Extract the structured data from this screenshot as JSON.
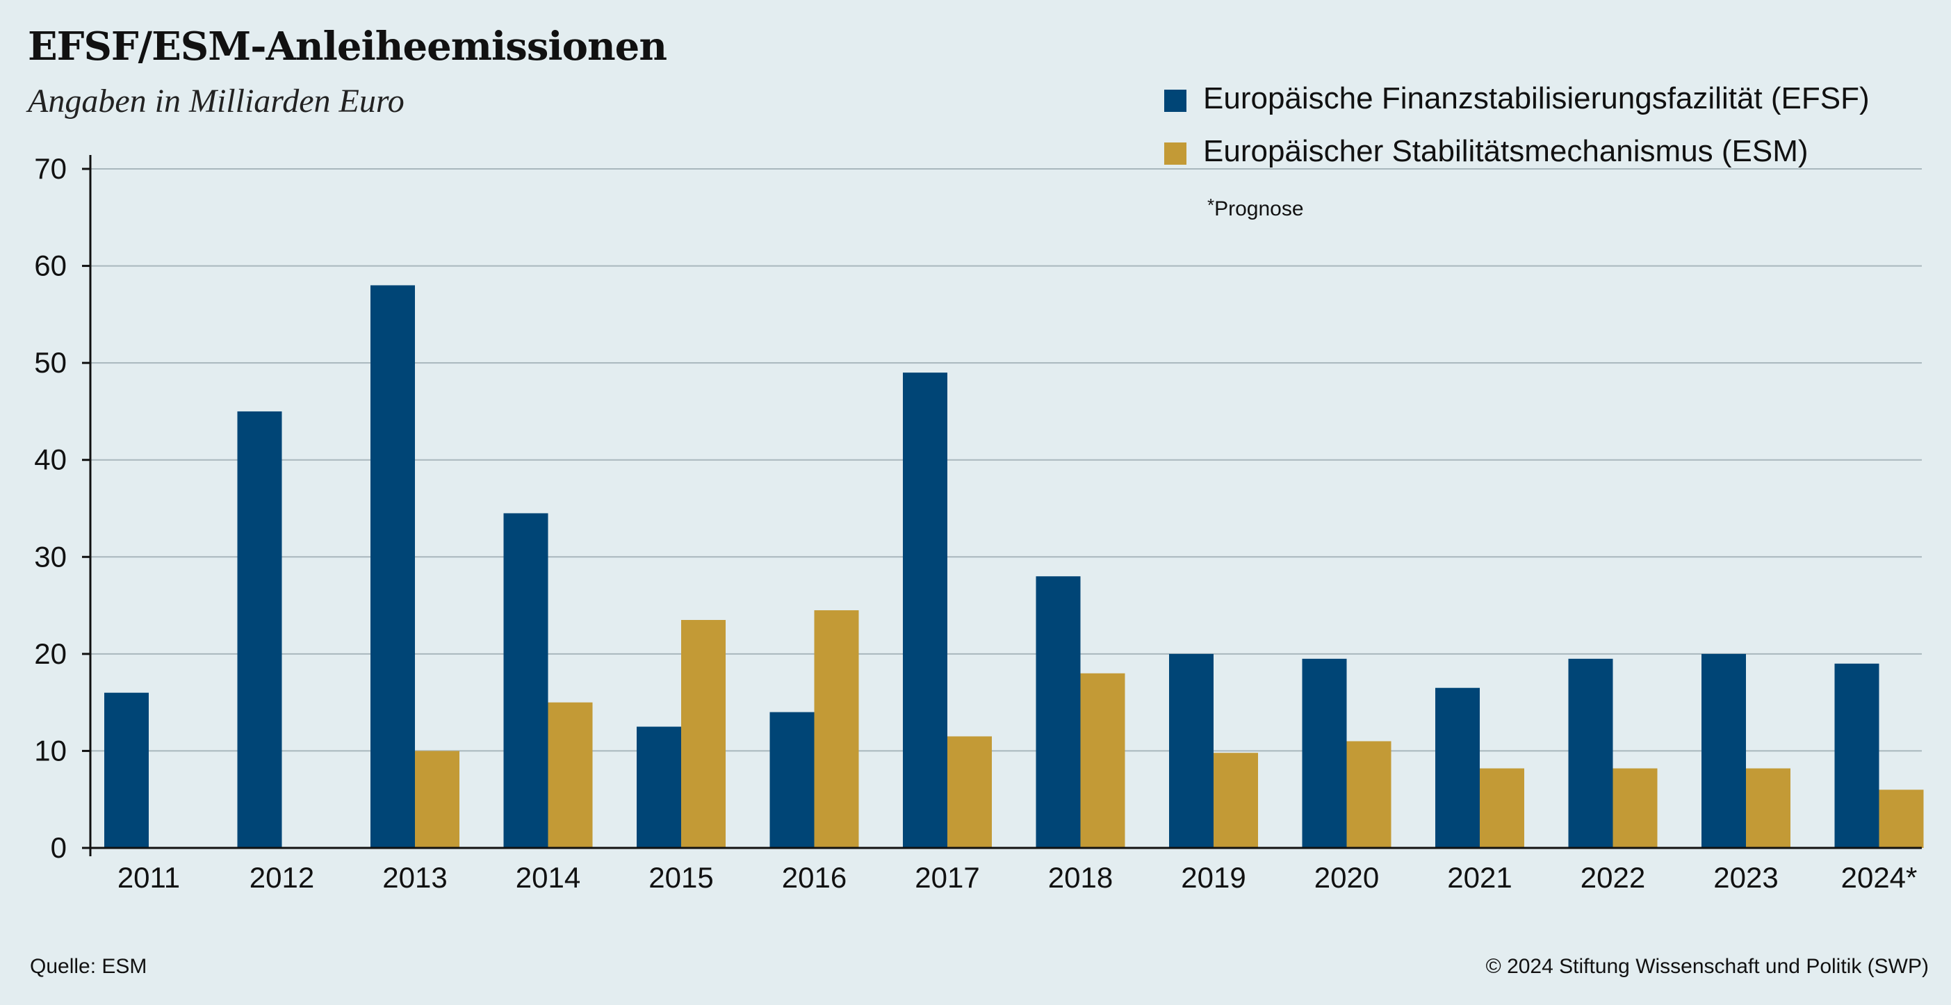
{
  "chart_data": {
    "type": "bar",
    "title": "EFSF/ESM-Anleiheemissionen",
    "subtitle": "Angaben in Milliarden Euro",
    "categories": [
      "2011",
      "2012",
      "2013",
      "2014",
      "2015",
      "2016",
      "2017",
      "2018",
      "2019",
      "2020",
      "2021",
      "2022",
      "2023",
      "2024*"
    ],
    "series": [
      {
        "name": "Europäische Finanzstabilisierungsfazilität (EFSF)",
        "color": "#004576",
        "values": [
          16,
          45,
          58,
          34.5,
          12.5,
          14,
          49,
          28,
          20,
          19.5,
          16.5,
          19.5,
          20,
          19
        ]
      },
      {
        "name": "Europäischer Stabilitätsmechanismus (ESM)",
        "color": "#c39a36",
        "values": [
          null,
          null,
          10,
          15,
          23.5,
          24.5,
          11.5,
          18,
          9.8,
          11,
          8.2,
          8.2,
          8.2,
          6
        ]
      }
    ],
    "ylim": [
      0,
      70
    ],
    "yticks": [
      0,
      10,
      20,
      30,
      40,
      50,
      60,
      70
    ],
    "xlabel": "",
    "ylabel": "",
    "grid": true,
    "legend_position": "top-right",
    "note": "Prognose",
    "note_marker": "*"
  },
  "footer": {
    "source": "Quelle: ESM",
    "copyright": "© 2024 Stiftung Wissenschaft und Politik (SWP)"
  },
  "colors": {
    "background": "#e3edf0",
    "grid": "#a9b7bd",
    "axis": "#111111"
  }
}
